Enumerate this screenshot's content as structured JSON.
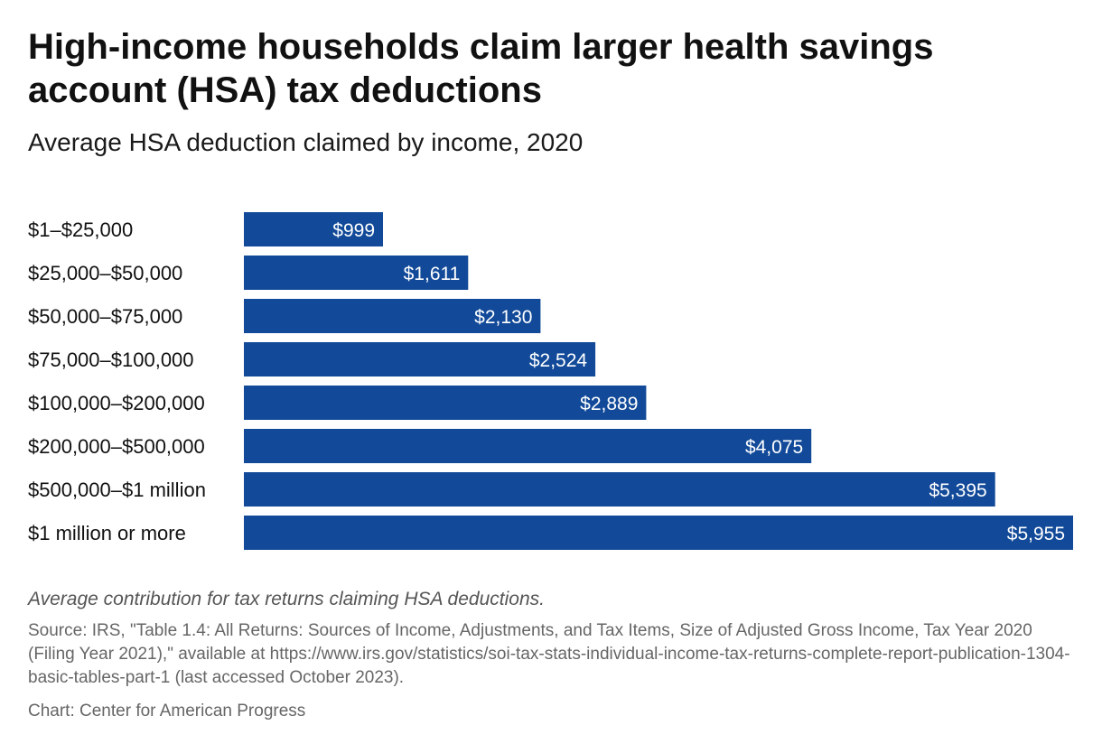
{
  "header": {
    "title": "High-income households claim larger health savings account (HSA) tax deductions",
    "subtitle": "Average HSA deduction claimed by income, 2020"
  },
  "footer": {
    "note": "Average contribution for tax returns claiming HSA deductions.",
    "source": "Source: IRS, \"Table 1.4: All Returns: Sources of Income, Adjustments, and Tax Items, Size of Adjusted Gross Income, Tax Year 2020 (Filing Year 2021),\" available at https://www.irs.gov/statistics/soi-tax-stats-individual-income-tax-returns-complete-report-publication-1304-basic-tables-part-1 (last accessed October 2023).",
    "credit": "Chart: Center for American Progress"
  },
  "chart_data": {
    "type": "bar",
    "orientation": "horizontal",
    "categories": [
      "$1–$25,000",
      "$25,000–$50,000",
      "$50,000–$75,000",
      "$75,000–$100,000",
      "$100,000–$200,000",
      "$200,000–$500,000",
      "$500,000–$1 million",
      "$1 million or more"
    ],
    "values": [
      999,
      1611,
      2130,
      2524,
      2889,
      4075,
      5395,
      5955
    ],
    "value_labels": [
      "$999",
      "$1,611",
      "$2,130",
      "$2,524",
      "$2,889",
      "$4,075",
      "$5,395",
      "$5,955"
    ],
    "bar_color": "#124a99",
    "label_color": "#ffffff",
    "grid": false,
    "legend": "none"
  }
}
